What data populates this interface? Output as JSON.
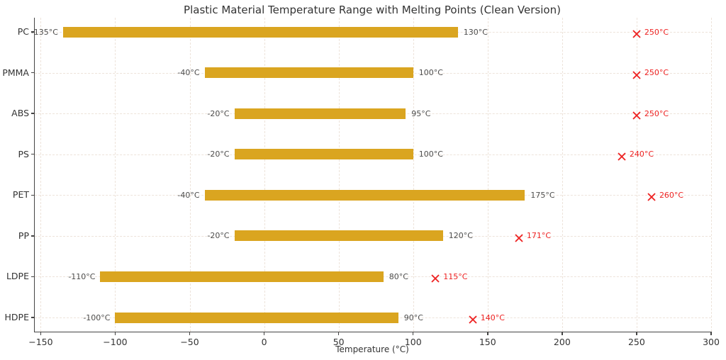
{
  "chart_data": {
    "type": "bar",
    "orientation": "horizontal",
    "title": "Plastic Material Temperature Range with Melting Points (Clean Version)",
    "xlabel": "Temperature (°C)",
    "xlim": [
      -154,
      300
    ],
    "x_ticks": [
      -150,
      -100,
      -50,
      0,
      50,
      100,
      150,
      200,
      250,
      300
    ],
    "x_tick_labels": [
      "−150",
      "−100",
      "−50",
      "0",
      "50",
      "100",
      "150",
      "200",
      "250",
      "300"
    ],
    "grid": true,
    "legend": "none",
    "categories": [
      "PC",
      "PMMA",
      "ABS",
      "PS",
      "PET",
      "PP",
      "LDPE",
      "HDPE"
    ],
    "series": [
      {
        "name": "min_temp",
        "values": [
          -135,
          -40,
          -20,
          -20,
          -40,
          -20,
          -110,
          -100
        ]
      },
      {
        "name": "max_temp",
        "values": [
          130,
          100,
          95,
          100,
          175,
          120,
          80,
          90
        ]
      },
      {
        "name": "melting_point",
        "values": [
          250,
          250,
          250,
          240,
          260,
          171,
          115,
          140
        ]
      }
    ],
    "point_labels": {
      "min": [
        "-135°C",
        "-40°C",
        "-20°C",
        "-20°C",
        "-40°C",
        "-20°C",
        "-110°C",
        "-100°C"
      ],
      "max": [
        "130°C",
        "100°C",
        "95°C",
        "100°C",
        "175°C",
        "120°C",
        "80°C",
        "90°C"
      ],
      "melt": [
        "250°C",
        "250°C",
        "250°C",
        "240°C",
        "260°C",
        "171°C",
        "115°C",
        "140°C"
      ]
    },
    "marker": "x",
    "colors": {
      "bar": "#DAA520",
      "melting": "#EE2222",
      "range_label": "#4D4D4D",
      "axis": "#444444",
      "tick_label": "#333333",
      "grid": "#EDE3DA",
      "title": "#333333"
    }
  }
}
